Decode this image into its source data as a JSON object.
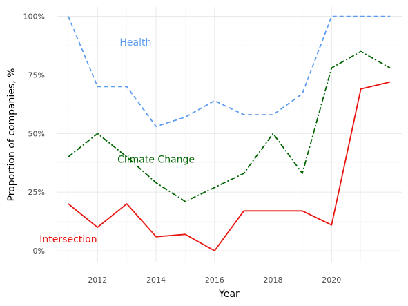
{
  "chart_data": {
    "type": "line",
    "title": "",
    "xlabel": "Year",
    "ylabel": "Proportion of companies, %",
    "xlim": [
      2010.6,
      2022.4
    ],
    "ylim": [
      -0.05,
      1.04
    ],
    "x_ticks": [
      2012,
      2014,
      2016,
      2018,
      2020
    ],
    "y_ticks": [
      0,
      0.25,
      0.5,
      0.75,
      1.0
    ],
    "y_tick_labels": [
      "0%",
      "25%",
      "50%",
      "75%",
      "100%"
    ],
    "grid": true,
    "legend": "none",
    "x": [
      2011,
      2012,
      2013,
      2014,
      2015,
      2016,
      2017,
      2018,
      2019,
      2020,
      2021,
      2022
    ],
    "series": [
      {
        "name": "Health",
        "color": "#5b9cf2",
        "dash": "dashed",
        "values": [
          1.0,
          0.7,
          0.7,
          0.53,
          0.57,
          0.64,
          0.58,
          0.58,
          0.67,
          1.0,
          1.0,
          1.0
        ],
        "label_at": [
          2013.3,
          0.89
        ]
      },
      {
        "name": "Climate Change",
        "color": "#006400",
        "dash": "dashdot",
        "values": [
          0.4,
          0.5,
          0.4,
          0.29,
          0.21,
          0.27,
          0.33,
          0.5,
          0.33,
          0.78,
          0.85,
          0.78
        ],
        "label_at": [
          2014.0,
          0.39
        ]
      },
      {
        "name": "Intersection",
        "color": "#e8140f",
        "dash": "solid",
        "values": [
          0.2,
          0.1,
          0.2,
          0.06,
          0.07,
          0.0,
          0.17,
          0.17,
          0.17,
          0.11,
          0.69,
          0.72
        ],
        "label_at": [
          2011.0,
          0.05
        ]
      }
    ]
  }
}
